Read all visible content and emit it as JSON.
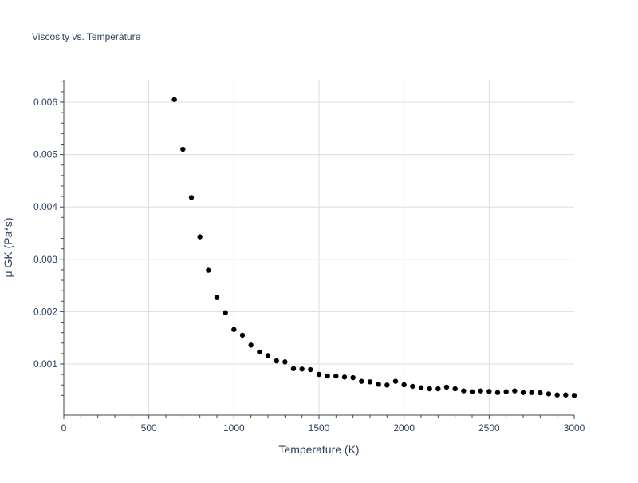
{
  "chart_data": {
    "type": "scatter",
    "title": "Viscosity vs. Temperature",
    "xlabel": "Temperature (K)",
    "ylabel": "μ GK (Pa*s)",
    "xlim": [
      0,
      3000
    ],
    "ylim": [
      0,
      0.0064
    ],
    "xticks": [
      0,
      500,
      1000,
      1500,
      2000,
      2500,
      3000
    ],
    "xtick_labels": [
      "0",
      "500",
      "1000",
      "1500",
      "2000",
      "2500",
      "3000"
    ],
    "yticks": [
      0.001,
      0.002,
      0.003,
      0.004,
      0.005,
      0.006
    ],
    "ytick_labels": [
      "0.001",
      "0.002",
      "0.003",
      "0.004",
      "0.005",
      "0.006"
    ],
    "grid": true,
    "marker_color": "#000000",
    "x": [
      650,
      700,
      750,
      800,
      850,
      900,
      950,
      1000,
      1050,
      1100,
      1150,
      1200,
      1250,
      1300,
      1350,
      1400,
      1450,
      1500,
      1550,
      1600,
      1650,
      1700,
      1750,
      1800,
      1850,
      1900,
      1950,
      2000,
      2050,
      2100,
      2150,
      2200,
      2250,
      2300,
      2350,
      2400,
      2450,
      2500,
      2550,
      2600,
      2650,
      2700,
      2750,
      2800,
      2850,
      2900,
      2950,
      3000
    ],
    "y": [
      0.00605,
      0.0051,
      0.00418,
      0.00343,
      0.00279,
      0.00227,
      0.00198,
      0.00166,
      0.00155,
      0.00136,
      0.00123,
      0.00116,
      0.00106,
      0.00104,
      0.000913,
      0.000904,
      0.000893,
      0.000802,
      0.000771,
      0.00077,
      0.000751,
      0.00074,
      0.00067,
      0.00066,
      0.000614,
      0.000599,
      0.00067,
      0.000604,
      0.000573,
      0.000547,
      0.000527,
      0.000527,
      0.000558,
      0.000527,
      0.000487,
      0.000471,
      0.000487,
      0.000477,
      0.000456,
      0.000471,
      0.000487,
      0.000456,
      0.000456,
      0.000451,
      0.000431,
      0.00041,
      0.00041,
      0.0004
    ]
  }
}
